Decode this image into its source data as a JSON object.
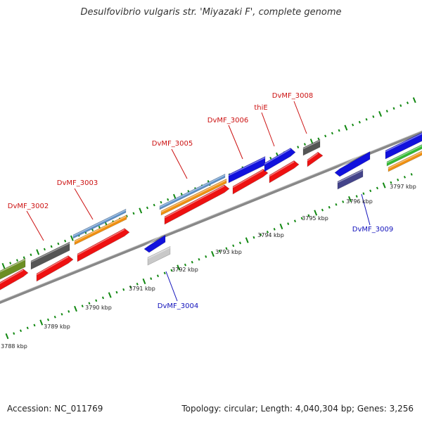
{
  "title": "Desulfovibrio vulgaris str. 'Miyazaki F', complete genome",
  "footer": {
    "accession": "Accession: NC_011769",
    "topology": "Topology: circular; Length: 4,040,304 bp; Genes: 3,256"
  },
  "colors": {
    "backbone": "#888888",
    "ticks": "#118811",
    "label_forward": "#cc1111",
    "label_reverse": "#1111bb",
    "cds": "#ee1111",
    "gene_blue": "#1111dd",
    "gene_gray": "#555555",
    "gene_steel": "#5b8fc8",
    "gene_orange": "#f09010",
    "gene_green": "#33bb33",
    "gene_olive": "#6b8e23",
    "gene_navy": "#44448a",
    "gene_lightgray": "#c8c8c8"
  },
  "kbp_labels": [
    "3788 kbp",
    "3789 kbp",
    "3790 kbp",
    "3791 kbp",
    "3792 kbp",
    "3793 kbp",
    "3794 kbp",
    "3795 kbp",
    "3796 kbp",
    "3797 kbp"
  ],
  "gene_labels_forward": [
    "DvMF_3002",
    "DvMF_3003",
    "DvMF_3005",
    "DvMF_3006",
    "thiE",
    "DvMF_3008"
  ],
  "gene_labels_reverse": [
    "DvMF_3004",
    "DvMF_3009"
  ]
}
